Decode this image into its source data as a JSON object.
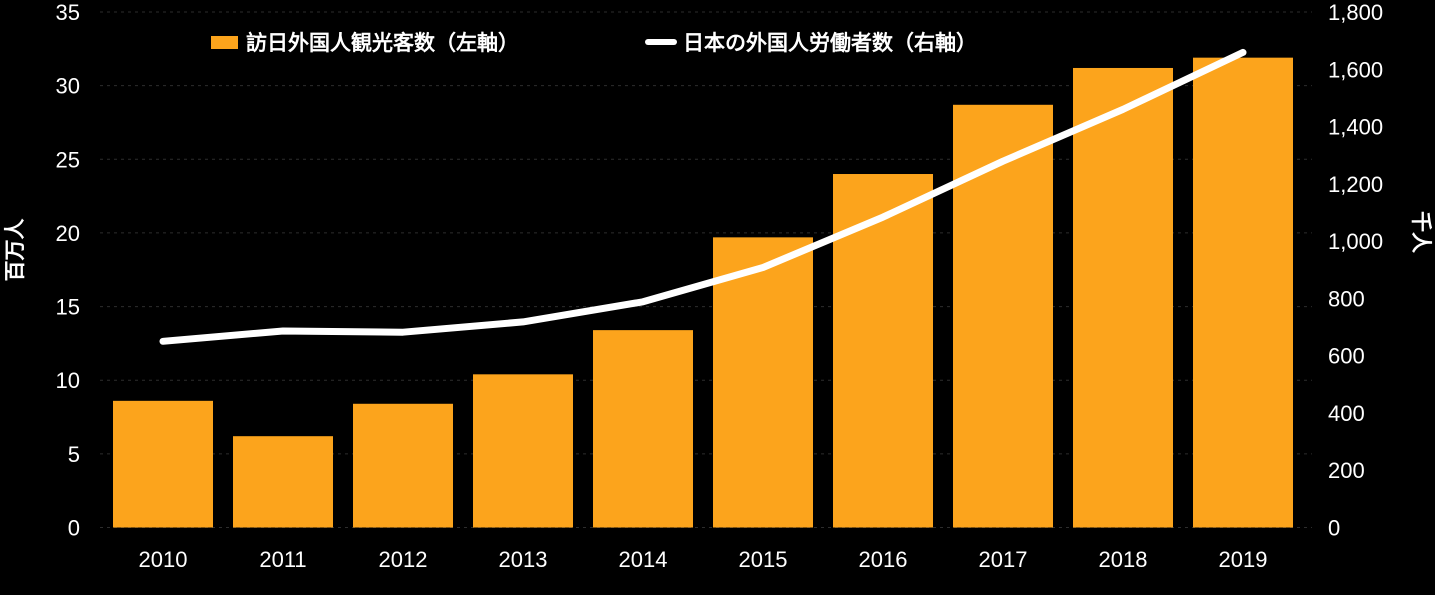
{
  "chart_data": {
    "type": "combo_bar_line",
    "title": "",
    "background": "#000000",
    "text_color": "#FFFFFF",
    "categories": [
      "2010",
      "2011",
      "2012",
      "2013",
      "2014",
      "2015",
      "2016",
      "2017",
      "2018",
      "2019"
    ],
    "series": [
      {
        "name": "訪日外国人観光客数（左軸）",
        "type": "bar",
        "axis": "left",
        "color": "#FCA41C",
        "values": [
          8.6,
          6.2,
          8.4,
          10.4,
          13.4,
          19.7,
          24.0,
          28.7,
          31.2,
          31.9
        ]
      },
      {
        "name": "日本の外国人労働者数（右軸）",
        "type": "line",
        "axis": "right",
        "color": "#FFFFFF",
        "values": [
          650,
          686,
          682,
          718,
          788,
          908,
          1084,
          1279,
          1460,
          1659
        ]
      }
    ],
    "left_axis": {
      "title": "百万人",
      "min": 0,
      "max": 35,
      "step": 5,
      "tick_labels": [
        "0",
        "5",
        "10",
        "15",
        "20",
        "25",
        "30",
        "35"
      ]
    },
    "right_axis": {
      "title": "千人",
      "min": 0,
      "max": 1800,
      "step": 200,
      "tick_labels": [
        "0",
        "200",
        "400",
        "600",
        "800",
        "1,000",
        "1,200",
        "1,400",
        "1,600",
        "1,800"
      ]
    },
    "legend_position": "top",
    "grid": {
      "horizontal": true,
      "style": "dashed",
      "color": "#2D2D2D"
    }
  }
}
